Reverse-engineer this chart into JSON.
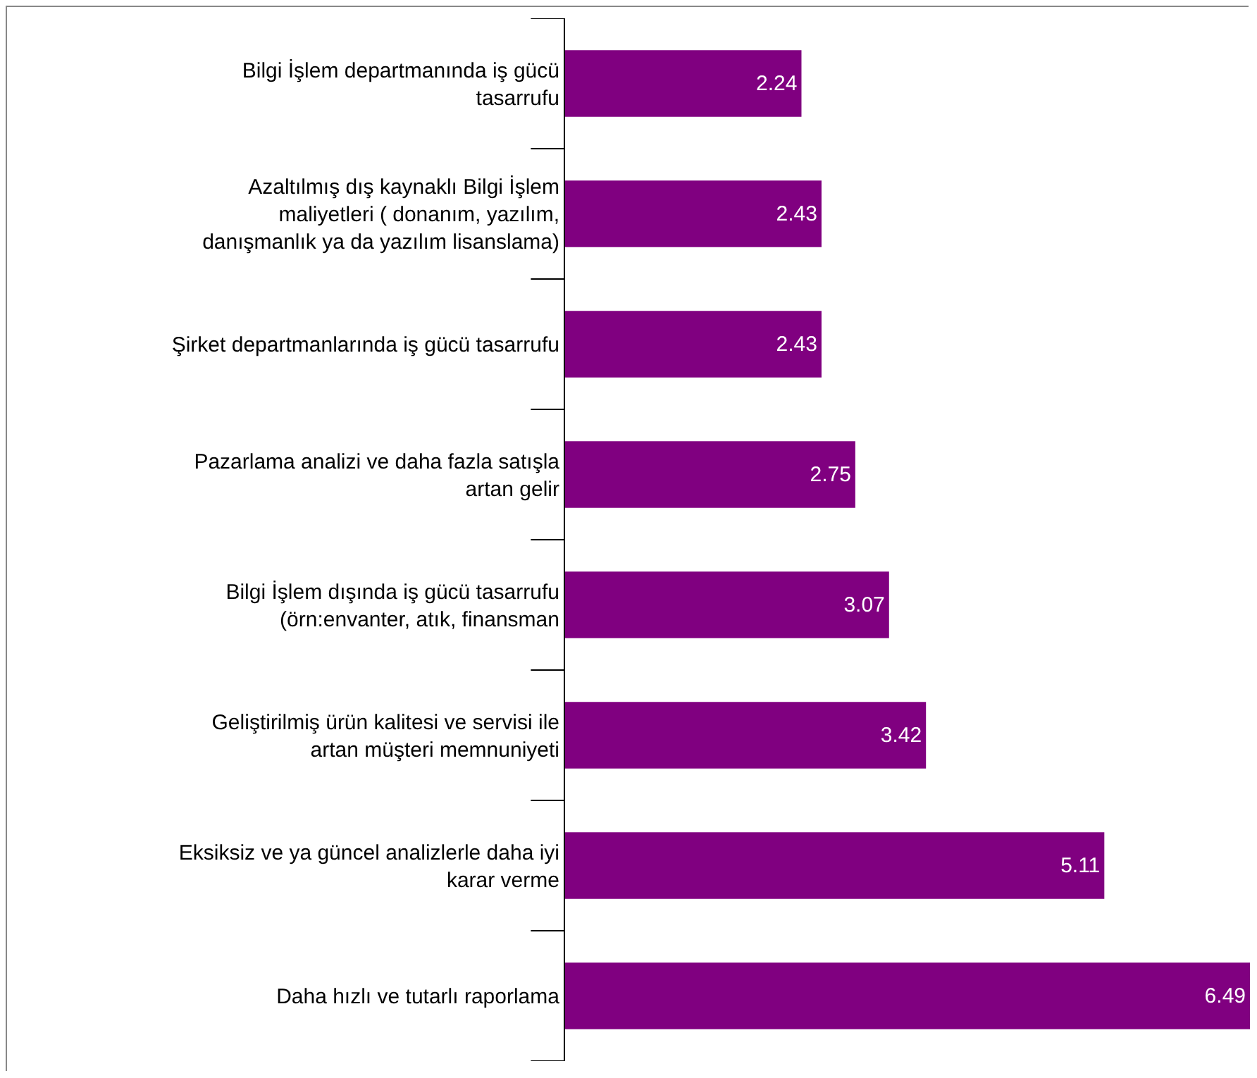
{
  "chart_data": {
    "type": "bar",
    "orientation": "horizontal",
    "categories": [
      "Bilgi İşlem departmanında iş gücü tasarrufu",
      "Azaltılmış dış kaynaklı Bilgi İşlem maliyetleri ( donanım, yazılım, danışmanlık ya da yazılım lisanslama)",
      "Şirket departmanlarında iş gücü tasarrufu",
      "Pazarlama analizi ve daha fazla satışla artan gelir",
      "Bilgi İşlem dışında iş gücü tasarrufu (örn:envanter, atık, finansman",
      "Geliştirilmiş ürün kalitesi ve servisi ile artan müşteri memnuniyeti",
      "Eksiksiz ve ya güncel analizlerle daha iyi karar verme",
      "Daha hızlı ve tutarlı raporlama"
    ],
    "values": [
      2.24,
      2.43,
      2.43,
      2.75,
      3.07,
      3.42,
      5.11,
      6.49
    ],
    "color": "#800080",
    "data_labels": true
  }
}
